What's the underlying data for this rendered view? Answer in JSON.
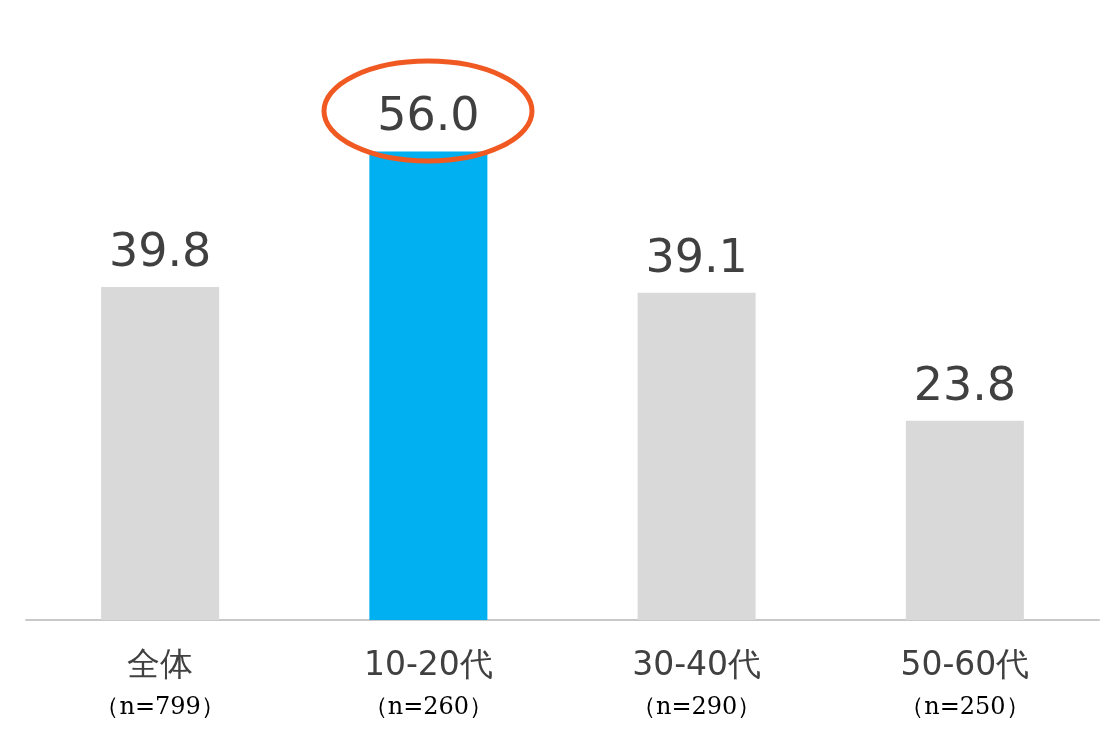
{
  "chart_data": {
    "type": "bar",
    "categories": [
      "全体（n=799）",
      "10-20代（n=260）",
      "30-40代（n=290）",
      "50-60代（n=250）"
    ],
    "values": [
      39.8,
      56.0,
      39.1,
      23.8
    ],
    "colors": [
      "#d9d9d9",
      "#00b0f0",
      "#d9d9d9",
      "#d9d9d9"
    ],
    "value_labels": [
      "39.8",
      "56.0",
      "39.1",
      "23.8"
    ]
  }
}
